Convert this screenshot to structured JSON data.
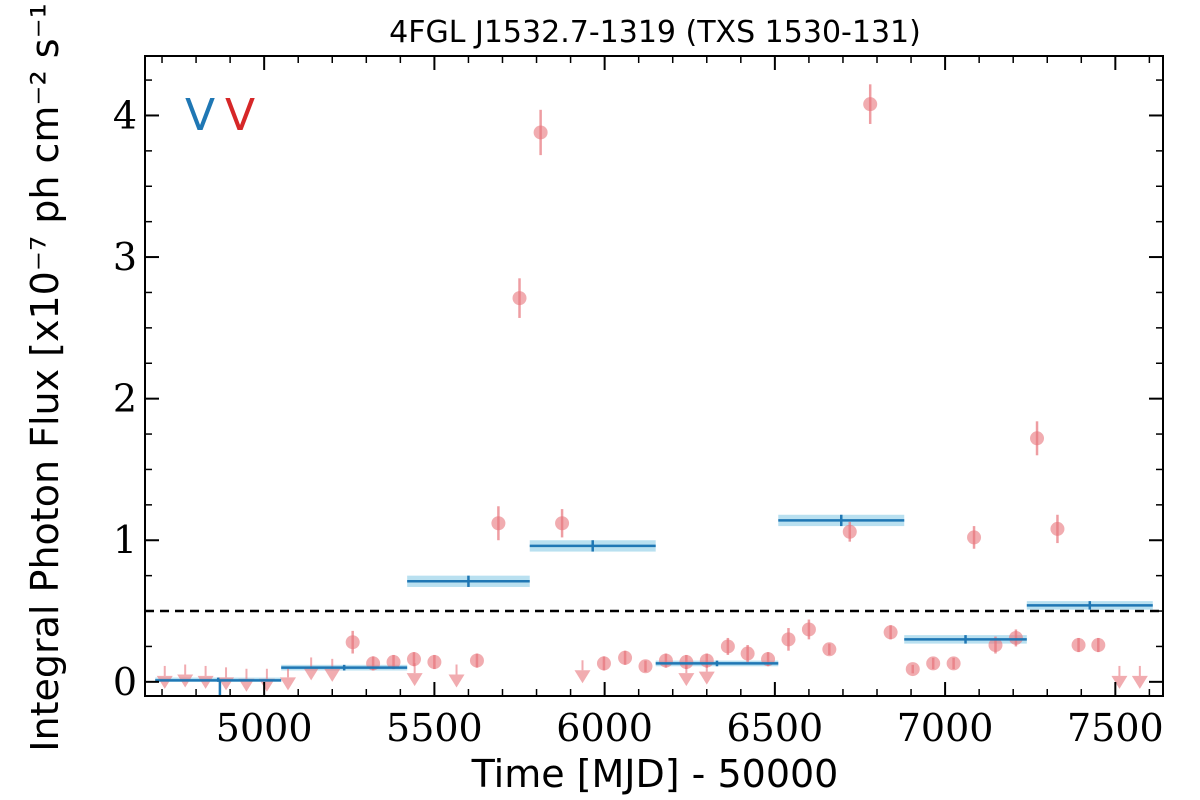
{
  "chart_data": {
    "type": "scatter",
    "title": "4FGL J1532.7-1319 (TXS 1530-131)",
    "xlabel": "Time [MJD] - 50000",
    "ylabel": "Integral Photon Flux [x10⁻⁷ ph cm⁻² s⁻¹]",
    "xlim": [
      4650,
      7640
    ],
    "ylim": [
      -0.1,
      4.42
    ],
    "x_ticks": [
      5000,
      5500,
      6000,
      6500,
      7000,
      7500
    ],
    "y_ticks": [
      0,
      1,
      2,
      3,
      4
    ],
    "threshold": 0.5,
    "markers": [
      {
        "text": "V",
        "color": "#1f77b4"
      },
      {
        "text": "V",
        "color": "#d62728"
      }
    ],
    "series": [
      {
        "kind": "monthly",
        "color": "#e8747c",
        "detections": [
          {
            "x": 5260,
            "y": 0.28,
            "err": 0.08
          },
          {
            "x": 5320,
            "y": 0.13,
            "err": 0.05
          },
          {
            "x": 5380,
            "y": 0.14,
            "err": 0.05
          },
          {
            "x": 5440,
            "y": 0.16,
            "err": 0.05
          },
          {
            "x": 5500,
            "y": 0.14,
            "err": 0.05
          },
          {
            "x": 5625,
            "y": 0.15,
            "err": 0.05
          },
          {
            "x": 5688,
            "y": 1.12,
            "err": 0.12
          },
          {
            "x": 5750,
            "y": 2.71,
            "err": 0.14
          },
          {
            "x": 5812,
            "y": 3.88,
            "err": 0.16
          },
          {
            "x": 5875,
            "y": 1.12,
            "err": 0.1
          },
          {
            "x": 5998,
            "y": 0.13,
            "err": 0.05
          },
          {
            "x": 6060,
            "y": 0.17,
            "err": 0.05
          },
          {
            "x": 6120,
            "y": 0.11,
            "err": 0.04
          },
          {
            "x": 6180,
            "y": 0.15,
            "err": 0.05
          },
          {
            "x": 6240,
            "y": 0.14,
            "err": 0.05
          },
          {
            "x": 6300,
            "y": 0.15,
            "err": 0.05
          },
          {
            "x": 6362,
            "y": 0.25,
            "err": 0.06
          },
          {
            "x": 6420,
            "y": 0.2,
            "err": 0.06
          },
          {
            "x": 6480,
            "y": 0.16,
            "err": 0.05
          },
          {
            "x": 6540,
            "y": 0.3,
            "err": 0.08
          },
          {
            "x": 6600,
            "y": 0.37,
            "err": 0.07
          },
          {
            "x": 6660,
            "y": 0.23,
            "err": 0.04
          },
          {
            "x": 6720,
            "y": 1.06,
            "err": 0.07
          },
          {
            "x": 6780,
            "y": 4.08,
            "err": 0.14
          },
          {
            "x": 6840,
            "y": 0.35,
            "err": 0.05
          },
          {
            "x": 6905,
            "y": 0.09,
            "err": 0.03
          },
          {
            "x": 6965,
            "y": 0.13,
            "err": 0.04
          },
          {
            "x": 7025,
            "y": 0.13,
            "err": 0.04
          },
          {
            "x": 7085,
            "y": 1.02,
            "err": 0.08
          },
          {
            "x": 7148,
            "y": 0.26,
            "err": 0.06
          },
          {
            "x": 7208,
            "y": 0.31,
            "err": 0.06
          },
          {
            "x": 7270,
            "y": 1.72,
            "err": 0.12
          },
          {
            "x": 7330,
            "y": 1.08,
            "err": 0.1
          },
          {
            "x": 7392,
            "y": 0.26,
            "err": 0.05
          },
          {
            "x": 7450,
            "y": 0.26,
            "err": 0.05
          }
        ],
        "upper_limits": [
          {
            "x": 4708,
            "y": 0.07
          },
          {
            "x": 4768,
            "y": 0.08
          },
          {
            "x": 4828,
            "y": 0.07
          },
          {
            "x": 4888,
            "y": 0.06
          },
          {
            "x": 4948,
            "y": 0.05
          },
          {
            "x": 5008,
            "y": 0.05
          },
          {
            "x": 5070,
            "y": 0.06
          },
          {
            "x": 5138,
            "y": 0.13
          },
          {
            "x": 5200,
            "y": 0.12
          },
          {
            "x": 5442,
            "y": 0.09
          },
          {
            "x": 5565,
            "y": 0.08
          },
          {
            "x": 5935,
            "y": 0.11
          },
          {
            "x": 6240,
            "y": 0.09
          },
          {
            "x": 6300,
            "y": 0.1
          },
          {
            "x": 7512,
            "y": 0.07
          },
          {
            "x": 7572,
            "y": 0.07
          }
        ]
      },
      {
        "kind": "long-bins",
        "color": "#1f77b4",
        "band_color": "#a8d8ec",
        "bins": [
          {
            "x0": 4680,
            "x1": 5050,
            "y": 0.01,
            "lo": 0.0,
            "hi": 0.03
          },
          {
            "x0": 5050,
            "x1": 5420,
            "y": 0.1,
            "lo": 0.08,
            "hi": 0.12
          },
          {
            "x0": 5420,
            "x1": 5780,
            "y": 0.71,
            "lo": 0.67,
            "hi": 0.75
          },
          {
            "x0": 5780,
            "x1": 6150,
            "y": 0.96,
            "lo": 0.92,
            "hi": 1.0
          },
          {
            "x0": 6150,
            "x1": 6510,
            "y": 0.13,
            "lo": 0.11,
            "hi": 0.15
          },
          {
            "x0": 6510,
            "x1": 6880,
            "y": 1.14,
            "lo": 1.1,
            "hi": 1.18
          },
          {
            "x0": 6880,
            "x1": 7240,
            "y": 0.3,
            "lo": 0.27,
            "hi": 0.33
          },
          {
            "x0": 7240,
            "x1": 7610,
            "y": 0.54,
            "lo": 0.51,
            "hi": 0.57
          }
        ]
      }
    ]
  }
}
